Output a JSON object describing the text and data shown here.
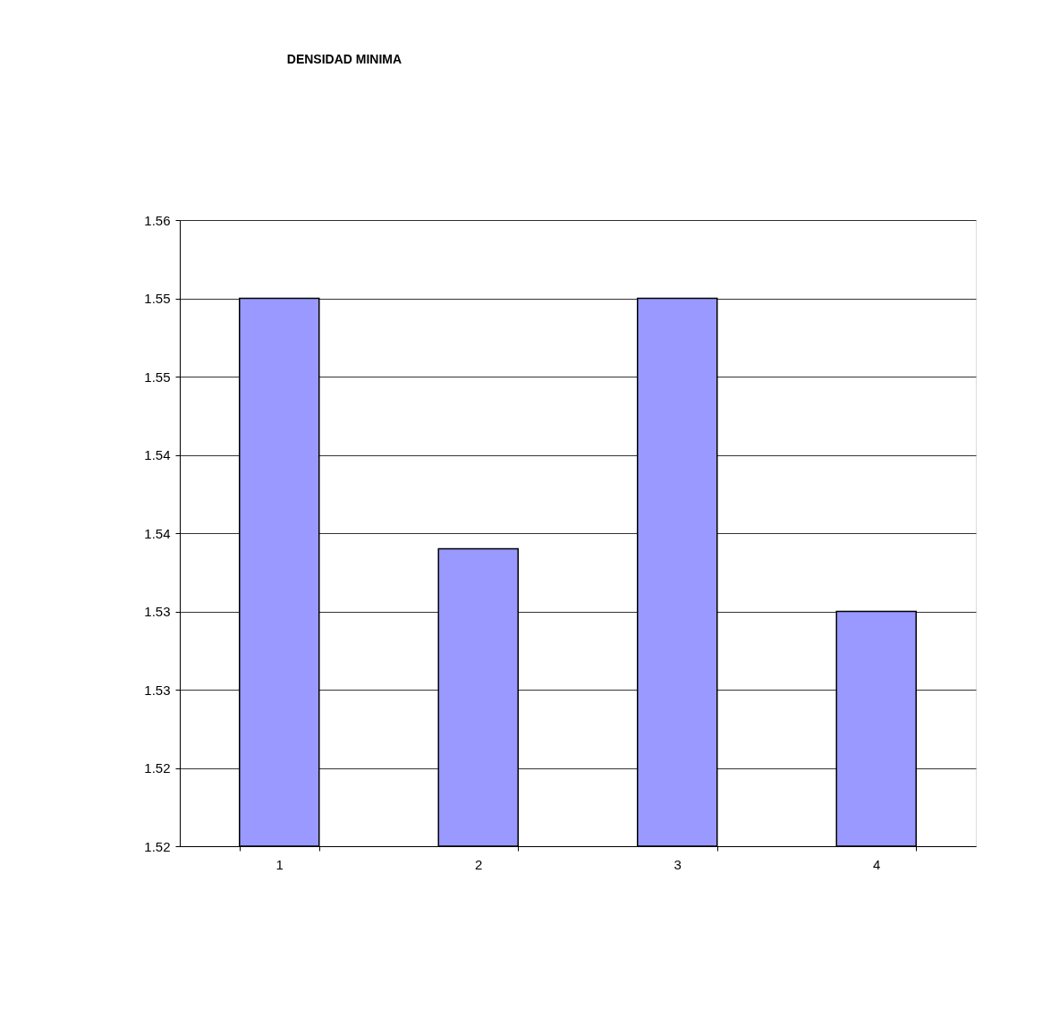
{
  "chart_data": {
    "type": "bar",
    "title": "DENSIDAD MINIMA",
    "categories": [
      "1",
      "2",
      "3",
      "4"
    ],
    "values": [
      1.555,
      1.539,
      1.555,
      1.535
    ],
    "color": "#9999ff",
    "ylim": [
      1.52,
      1.56
    ],
    "yticks": [
      1.52,
      {
        "value": 1.525,
        "label": "1.52"
      },
      1.53,
      {
        "value": 1.535,
        "label": "1.53"
      },
      1.54,
      {
        "value": 1.545,
        "label": "1.54"
      },
      1.55,
      {
        "value": 1.555,
        "label": "1.55"
      },
      1.56
    ],
    "grid": "y"
  }
}
